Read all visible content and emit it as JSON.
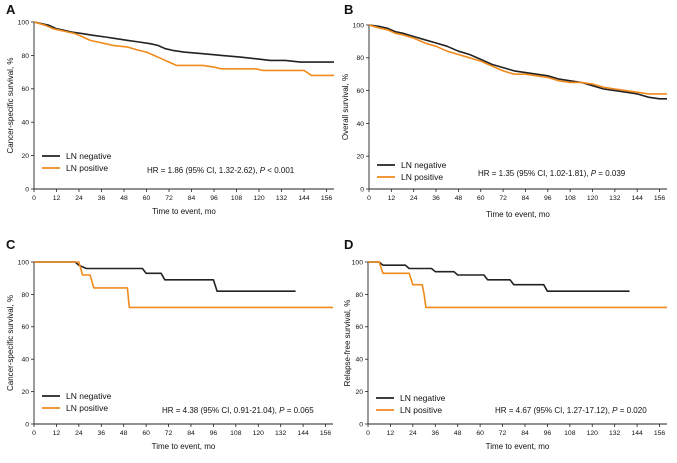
{
  "chart_data": [
    {
      "type": "line",
      "panel": "A",
      "xlabel": "Time to event, mo",
      "ylabel": "Cancer-specific survival, %",
      "xlim": [
        0,
        160
      ],
      "ylim": [
        0,
        100
      ],
      "xticks": [
        "0",
        "12",
        "24",
        "36",
        "48",
        "60",
        "72",
        "84",
        "96",
        "108",
        "120",
        "132",
        "144",
        "156"
      ],
      "yticks": [
        "0",
        "20",
        "40",
        "60",
        "80",
        "100"
      ],
      "legend": [
        "LN negative",
        "LN positive"
      ],
      "annotation": {
        "prefix": "HR = 1.86 (95% CI, 1.32-2.62), ",
        "p_symbol": "P",
        "suffix": " < 0.001"
      },
      "series": [
        {
          "name": "LN negative",
          "color": "#222222",
          "points": [
            [
              0,
              100
            ],
            [
              4,
              99
            ],
            [
              8,
              98
            ],
            [
              12,
              96
            ],
            [
              16,
              95
            ],
            [
              20,
              94
            ],
            [
              26,
              93
            ],
            [
              32,
              92
            ],
            [
              38,
              91
            ],
            [
              44,
              90
            ],
            [
              50,
              89
            ],
            [
              56,
              88
            ],
            [
              62,
              87
            ],
            [
              66,
              86
            ],
            [
              70,
              84
            ],
            [
              74,
              83
            ],
            [
              80,
              82
            ],
            [
              90,
              81
            ],
            [
              100,
              80
            ],
            [
              110,
              79
            ],
            [
              118,
              78
            ],
            [
              126,
              77
            ],
            [
              134,
              77
            ],
            [
              142,
              76
            ],
            [
              150,
              76
            ],
            [
              160,
              76
            ]
          ]
        },
        {
          "name": "LN positive",
          "color": "#F08A1C",
          "points": [
            [
              0,
              100
            ],
            [
              6,
              98
            ],
            [
              10,
              96
            ],
            [
              14,
              95
            ],
            [
              18,
              94
            ],
            [
              22,
              93
            ],
            [
              26,
              91
            ],
            [
              30,
              89
            ],
            [
              34,
              88
            ],
            [
              38,
              87
            ],
            [
              42,
              86
            ],
            [
              50,
              85
            ],
            [
              56,
              83
            ],
            [
              60,
              82
            ],
            [
              64,
              80
            ],
            [
              68,
              78
            ],
            [
              72,
              76
            ],
            [
              76,
              74
            ],
            [
              90,
              74
            ],
            [
              96,
              73
            ],
            [
              100,
              72
            ],
            [
              118,
              72
            ],
            [
              122,
              71
            ],
            [
              144,
              71
            ],
            [
              148,
              68
            ],
            [
              160,
              68
            ]
          ]
        }
      ]
    },
    {
      "type": "line",
      "panel": "B",
      "xlabel": "Time to event, mo",
      "ylabel": "Overall survival, %",
      "xlim": [
        0,
        160
      ],
      "ylim": [
        0,
        100
      ],
      "xticks": [
        "0",
        "12",
        "24",
        "36",
        "48",
        "60",
        "72",
        "84",
        "96",
        "108",
        "120",
        "132",
        "144",
        "156"
      ],
      "yticks": [
        "0",
        "20",
        "40",
        "60",
        "80",
        "100"
      ],
      "legend": [
        "LN negative",
        "LN positive"
      ],
      "annotation": {
        "prefix": "HR = 1.35 (95% CI, 1.02-1.81), ",
        "p_symbol": "P",
        "suffix": " = 0.039"
      },
      "series": [
        {
          "name": "LN negative",
          "color": "#222222",
          "points": [
            [
              0,
              100
            ],
            [
              6,
              99
            ],
            [
              10,
              98
            ],
            [
              14,
              96
            ],
            [
              18,
              95
            ],
            [
              24,
              93
            ],
            [
              30,
              91
            ],
            [
              36,
              89
            ],
            [
              42,
              87
            ],
            [
              48,
              84
            ],
            [
              54,
              82
            ],
            [
              60,
              79
            ],
            [
              66,
              76
            ],
            [
              72,
              74
            ],
            [
              78,
              72
            ],
            [
              84,
              71
            ],
            [
              90,
              70
            ],
            [
              96,
              69
            ],
            [
              102,
              67
            ],
            [
              108,
              66
            ],
            [
              114,
              65
            ],
            [
              120,
              63
            ],
            [
              126,
              61
            ],
            [
              132,
              60
            ],
            [
              138,
              59
            ],
            [
              144,
              58
            ],
            [
              150,
              56
            ],
            [
              156,
              55
            ],
            [
              160,
              55
            ]
          ]
        },
        {
          "name": "LN positive",
          "color": "#F08A1C",
          "points": [
            [
              0,
              100
            ],
            [
              6,
              98
            ],
            [
              10,
              97
            ],
            [
              14,
              95
            ],
            [
              18,
              94
            ],
            [
              24,
              92
            ],
            [
              30,
              89
            ],
            [
              36,
              87
            ],
            [
              42,
              84
            ],
            [
              48,
              82
            ],
            [
              54,
              80
            ],
            [
              60,
              78
            ],
            [
              66,
              75
            ],
            [
              72,
              72
            ],
            [
              78,
              70
            ],
            [
              84,
              70
            ],
            [
              90,
              69
            ],
            [
              96,
              68
            ],
            [
              102,
              66
            ],
            [
              108,
              65
            ],
            [
              114,
              65
            ],
            [
              120,
              64
            ],
            [
              126,
              62
            ],
            [
              132,
              61
            ],
            [
              138,
              60
            ],
            [
              144,
              59
            ],
            [
              150,
              58
            ],
            [
              160,
              58
            ]
          ]
        }
      ]
    },
    {
      "type": "line",
      "panel": "C",
      "xlabel": "Time to event, mo",
      "ylabel": "Cancer-specific survival, %",
      "xlim": [
        0,
        160
      ],
      "ylim": [
        0,
        100
      ],
      "xticks": [
        "0",
        "12",
        "24",
        "36",
        "48",
        "60",
        "72",
        "84",
        "96",
        "108",
        "120",
        "132",
        "144",
        "156"
      ],
      "yticks": [
        "0",
        "20",
        "40",
        "60",
        "80",
        "100"
      ],
      "legend": [
        "LN negative",
        "LN positive"
      ],
      "annotation": {
        "prefix": "HR = 4.38 (95% CI, 0.91-21.04), ",
        "p_symbol": "P",
        "suffix": " = 0.065"
      },
      "series": [
        {
          "name": "LN negative",
          "color": "#222222",
          "points": [
            [
              0,
              100
            ],
            [
              22,
              100
            ],
            [
              24,
              98
            ],
            [
              28,
              96
            ],
            [
              58,
              96
            ],
            [
              60,
              93
            ],
            [
              68,
              93
            ],
            [
              70,
              89
            ],
            [
              96,
              89
            ],
            [
              98,
              82
            ],
            [
              140,
              82
            ]
          ]
        },
        {
          "name": "LN positive",
          "color": "#F08A1C",
          "points": [
            [
              0,
              100
            ],
            [
              24,
              100
            ],
            [
              26,
              92
            ],
            [
              30,
              92
            ],
            [
              32,
              84
            ],
            [
              50,
              84
            ],
            [
              51,
              72
            ],
            [
              160,
              72
            ]
          ]
        }
      ]
    },
    {
      "type": "line",
      "panel": "D",
      "xlabel": "Time to event, mo",
      "ylabel": "Relapse-free survival, %",
      "xlim": [
        0,
        160
      ],
      "ylim": [
        0,
        100
      ],
      "xticks": [
        "0",
        "12",
        "24",
        "36",
        "48",
        "60",
        "72",
        "84",
        "96",
        "108",
        "120",
        "132",
        "144",
        "156"
      ],
      "yticks": [
        "0",
        "20",
        "40",
        "60",
        "80",
        "100"
      ],
      "legend": [
        "LN negative",
        "LN positive"
      ],
      "annotation": {
        "prefix": "HR = 4.67 (95% CI, 1.27-17.12), ",
        "p_symbol": "P",
        "suffix": " = 0.020"
      },
      "series": [
        {
          "name": "LN negative",
          "color": "#222222",
          "points": [
            [
              0,
              100
            ],
            [
              6,
              100
            ],
            [
              8,
              98
            ],
            [
              20,
              98
            ],
            [
              22,
              96
            ],
            [
              34,
              96
            ],
            [
              36,
              94
            ],
            [
              46,
              94
            ],
            [
              48,
              92
            ],
            [
              62,
              92
            ],
            [
              64,
              89
            ],
            [
              76,
              89
            ],
            [
              78,
              86
            ],
            [
              94,
              86
            ],
            [
              96,
              82
            ],
            [
              140,
              82
            ]
          ]
        },
        {
          "name": "LN positive",
          "color": "#F08A1C",
          "points": [
            [
              0,
              100
            ],
            [
              6,
              100
            ],
            [
              8,
              93
            ],
            [
              22,
              93
            ],
            [
              24,
              86
            ],
            [
              29,
              86
            ],
            [
              30,
              80
            ],
            [
              31,
              72
            ],
            [
              160,
              72
            ]
          ]
        }
      ]
    }
  ]
}
